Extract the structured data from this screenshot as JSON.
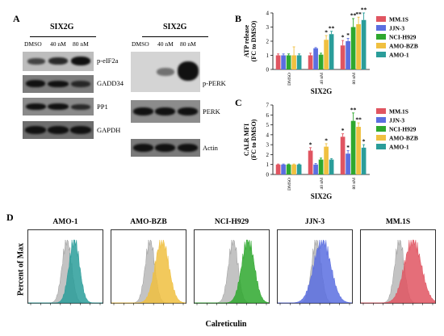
{
  "panel_A": {
    "letter": "A",
    "group_left": "SIX2G",
    "group_right": "SIX2G",
    "lanes_left": [
      "DMSO",
      "40 nM",
      "80 nM"
    ],
    "lanes_right": [
      "DMSO",
      "40 nM",
      "80 nM"
    ],
    "left_blots": [
      "p-eIF2a",
      "GADD34",
      "PP1",
      "GAPDH"
    ],
    "right_blots": [
      "p-PERK",
      "PERK",
      "Actin"
    ]
  },
  "panel_B": {
    "letter": "B"
  },
  "panel_C": {
    "letter": "C"
  },
  "panel_D": {
    "letter": "D",
    "ylabel": "Percent of Max",
    "xlabel": "Calreticulin"
  },
  "colors": {
    "MM.1S": "#e05561",
    "JJN-3": "#5b6ee0",
    "NCI-H929": "#2ea82e",
    "AMO-BZB": "#f0c040",
    "AMO-1": "#2a9d9a"
  },
  "chart_data": [
    {
      "type": "bar",
      "panel": "B",
      "categories": [
        "DMSO",
        "40 nM",
        "80 nM"
      ],
      "xlabel": "SIX2G",
      "ylabel": "ATP release (FC to DMSO)",
      "ylim": [
        0,
        4
      ],
      "yticks": [
        "0",
        "1",
        "2",
        "3",
        "4"
      ],
      "grid": false,
      "legend": "right",
      "series": [
        {
          "name": "MM.1S",
          "values": [
            1.0,
            1.0,
            1.7
          ],
          "errors": [
            0.1,
            0.15,
            0.35
          ],
          "sig": [
            "",
            "",
            "*"
          ]
        },
        {
          "name": "JJN-3",
          "values": [
            1.0,
            1.5,
            2.0
          ],
          "errors": [
            0.1,
            0.05,
            0.2
          ],
          "sig": [
            "",
            "",
            "*"
          ]
        },
        {
          "name": "NCI-H929",
          "values": [
            1.0,
            1.05,
            3.0
          ],
          "errors": [
            0.1,
            0.1,
            0.6
          ],
          "sig": [
            "",
            "",
            "**"
          ]
        },
        {
          "name": "AMO-BZB",
          "values": [
            1.0,
            2.1,
            3.2
          ],
          "errors": [
            0.6,
            0.3,
            0.5
          ],
          "sig": [
            "",
            "*",
            "**"
          ]
        },
        {
          "name": "AMO-1",
          "values": [
            1.0,
            2.5,
            3.5
          ],
          "errors": [
            0.1,
            0.2,
            0.5
          ],
          "sig": [
            "",
            "**",
            "**"
          ]
        }
      ]
    },
    {
      "type": "bar",
      "panel": "C",
      "categories": [
        "DMSO",
        "40 nM",
        "80 nM"
      ],
      "xlabel": "SIX2G",
      "ylabel": "CALR MFI (FC to DMSO)",
      "ylim": [
        0,
        7
      ],
      "yticks": [
        "0",
        "1",
        "2",
        "3",
        "4",
        "5",
        "6",
        "7"
      ],
      "grid": false,
      "legend": "right",
      "series": [
        {
          "name": "MM.1S",
          "values": [
            1.0,
            2.4,
            3.8
          ],
          "errors": [
            0.05,
            0.3,
            0.3
          ],
          "sig": [
            "",
            "*",
            "*"
          ]
        },
        {
          "name": "JJN-3",
          "values": [
            1.0,
            1.0,
            2.1
          ],
          "errors": [
            0.05,
            0.1,
            0.3
          ],
          "sig": [
            "",
            "",
            "*"
          ]
        },
        {
          "name": "NCI-H929",
          "values": [
            1.0,
            1.5,
            5.4
          ],
          "errors": [
            0.05,
            0.15,
            0.8
          ],
          "sig": [
            "",
            "",
            "**"
          ]
        },
        {
          "name": "AMO-BZB",
          "values": [
            1.0,
            2.8,
            4.8
          ],
          "errors": [
            0.05,
            0.3,
            0.4
          ],
          "sig": [
            "",
            "*",
            "**"
          ]
        },
        {
          "name": "AMO-1",
          "values": [
            1.0,
            1.5,
            2.7
          ],
          "errors": [
            0.05,
            0.1,
            0.3
          ],
          "sig": [
            "",
            "",
            "*"
          ]
        }
      ]
    }
  ],
  "flow": [
    {
      "title": "AMO-1",
      "color_key": "AMO-1",
      "treated_peak": 0.62,
      "treated_width": 0.1
    },
    {
      "title": "AMO-BZB",
      "color_key": "AMO-BZB",
      "treated_peak": 0.68,
      "treated_width": 0.13
    },
    {
      "title": "NCI-H929",
      "color_key": "NCI-H929",
      "treated_peak": 0.72,
      "treated_width": 0.12
    },
    {
      "title": "JJN-3",
      "color_key": "JJN-3",
      "treated_peak": 0.6,
      "treated_width": 0.16
    },
    {
      "title": "MM.1S",
      "color_key": "MM.1S",
      "treated_peak": 0.7,
      "treated_width": 0.16
    }
  ]
}
